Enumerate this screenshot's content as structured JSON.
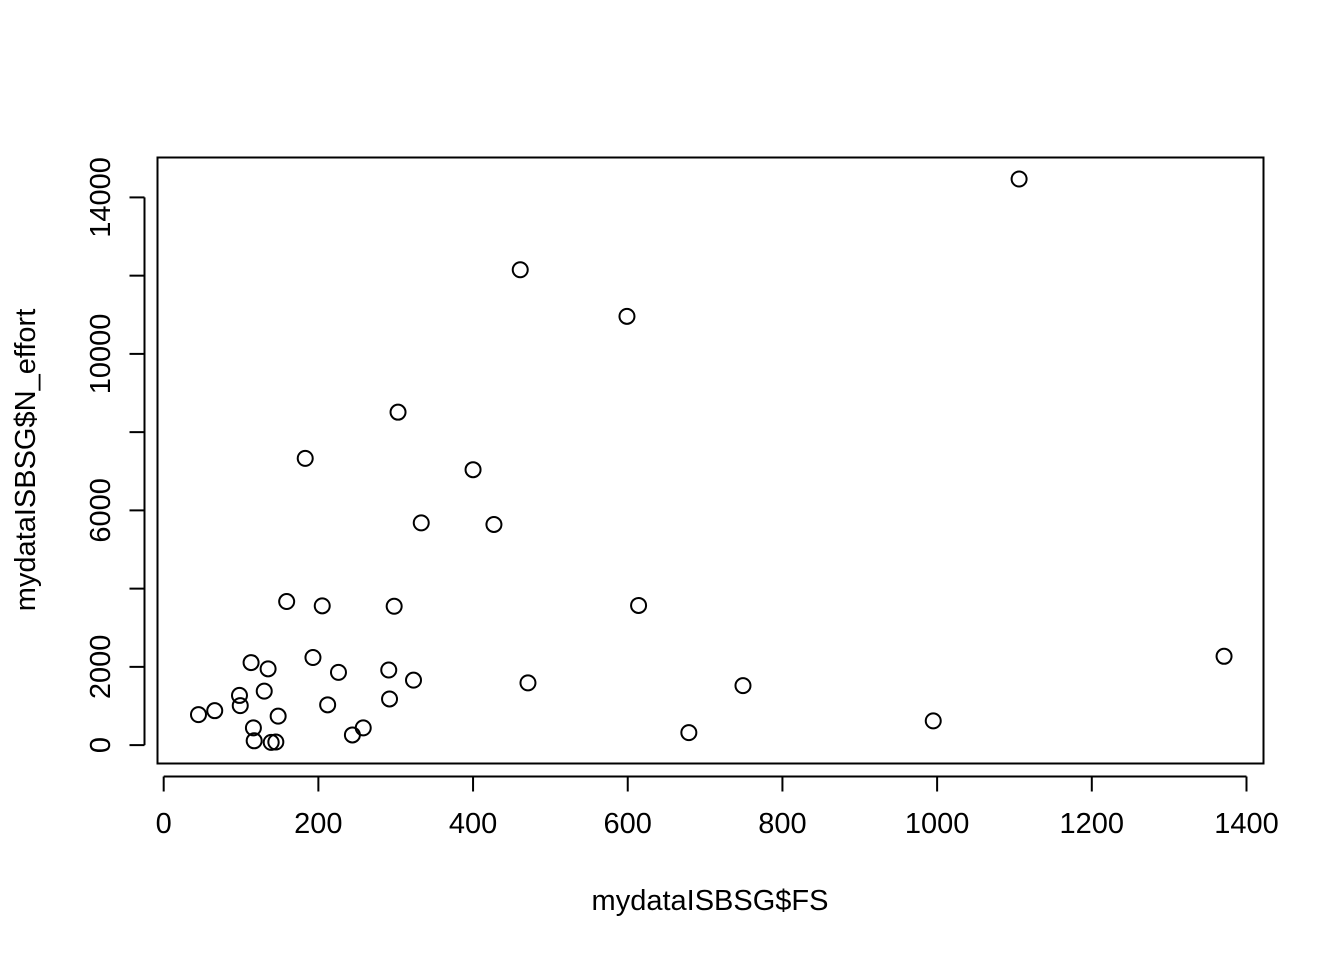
{
  "chart_data": {
    "type": "scatter",
    "xlabel": "mydataISBSG$FS",
    "ylabel": "mydataISBSG$N_effort",
    "xlim": [
      -8,
      1422
    ],
    "ylim": [
      -470,
      15020
    ],
    "x_ticks": [
      0,
      200,
      400,
      600,
      800,
      1000,
      1200,
      1400
    ],
    "x_tick_labels": [
      "0",
      "200",
      "400",
      "600",
      "800",
      "1000",
      "1200",
      "1400"
    ],
    "y_ticks": [
      0,
      2000,
      4000,
      6000,
      8000,
      10000,
      12000,
      14000
    ],
    "y_tick_labels": [
      "0",
      "2000",
      "",
      "6000",
      "",
      "10000",
      "",
      "14000"
    ],
    "grid": false,
    "marker": "open-circle",
    "points": [
      {
        "x": 45,
        "y": 780
      },
      {
        "x": 66,
        "y": 880
      },
      {
        "x": 98,
        "y": 1270
      },
      {
        "x": 99,
        "y": 1010
      },
      {
        "x": 113,
        "y": 2110
      },
      {
        "x": 116,
        "y": 440
      },
      {
        "x": 117,
        "y": 110
      },
      {
        "x": 130,
        "y": 1380
      },
      {
        "x": 135,
        "y": 1950
      },
      {
        "x": 139,
        "y": 70
      },
      {
        "x": 145,
        "y": 80
      },
      {
        "x": 148,
        "y": 740
      },
      {
        "x": 159,
        "y": 3670
      },
      {
        "x": 183,
        "y": 7330
      },
      {
        "x": 193,
        "y": 2240
      },
      {
        "x": 205,
        "y": 3560
      },
      {
        "x": 212,
        "y": 1030
      },
      {
        "x": 226,
        "y": 1860
      },
      {
        "x": 244,
        "y": 260
      },
      {
        "x": 258,
        "y": 440
      },
      {
        "x": 291,
        "y": 1920
      },
      {
        "x": 292,
        "y": 1180
      },
      {
        "x": 298,
        "y": 3550
      },
      {
        "x": 303,
        "y": 8510
      },
      {
        "x": 323,
        "y": 1660
      },
      {
        "x": 333,
        "y": 5680
      },
      {
        "x": 400,
        "y": 7040
      },
      {
        "x": 427,
        "y": 5640
      },
      {
        "x": 461,
        "y": 12150
      },
      {
        "x": 471,
        "y": 1590
      },
      {
        "x": 599,
        "y": 10960
      },
      {
        "x": 614,
        "y": 3570
      },
      {
        "x": 679,
        "y": 320
      },
      {
        "x": 749,
        "y": 1520
      },
      {
        "x": 995,
        "y": 620
      },
      {
        "x": 1106,
        "y": 14470
      },
      {
        "x": 1371,
        "y": 2270
      }
    ]
  }
}
